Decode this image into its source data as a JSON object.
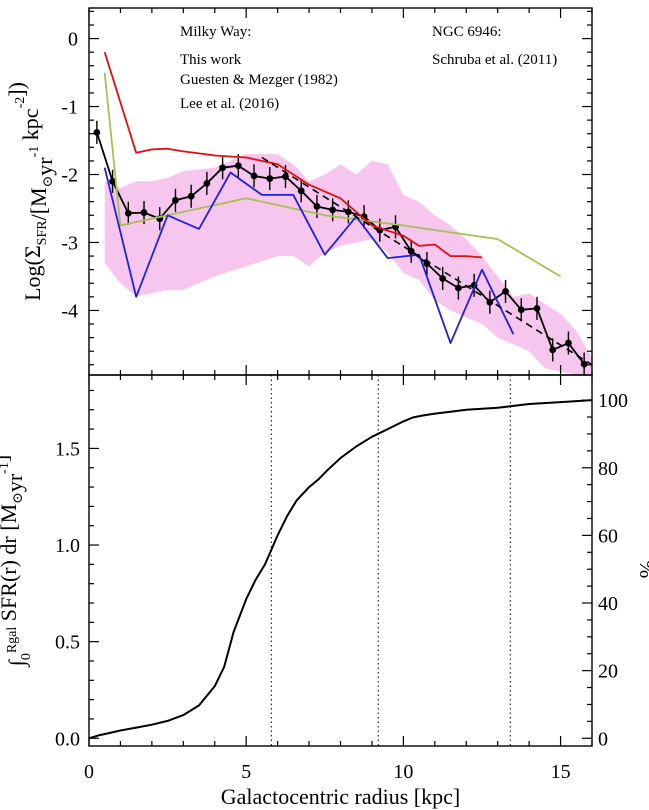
{
  "chart_data": [
    {
      "type": "line",
      "ylabel": "Log(Σ_SFR/[M⊙yr⁻¹ kpc⁻²])",
      "xlim": [
        0,
        16
      ],
      "ylim": [
        -4.95,
        0.45
      ],
      "xticks": [
        0,
        5,
        10,
        15
      ],
      "yticks": [
        0,
        -1,
        -2,
        -3,
        -4
      ],
      "ytick_labels": [
        "0",
        "-1",
        "-2",
        "-3",
        "-4"
      ],
      "legend": {
        "milky_way_header": "Milky Way:",
        "ngc_header": "NGC 6946:",
        "entries": [
          {
            "name": "This work",
            "color": "#000000"
          },
          {
            "name": "Guesten & Mezger (1982)",
            "color": "#a8c050"
          },
          {
            "name": "Lee et al. (2016)",
            "color": "#2020e0"
          },
          {
            "name": "Schruba et al. (2011)",
            "color": "#e01010"
          }
        ]
      },
      "band": {
        "color": "#f7c6ef",
        "x": [
          0.5,
          1.0,
          1.5,
          2.0,
          2.5,
          3.0,
          4.0,
          5.0,
          6.0,
          6.5,
          7.0,
          7.5,
          8.0,
          8.5,
          9.0,
          9.5,
          10.0,
          10.5,
          11.0,
          11.5,
          12.0,
          12.5,
          13.0,
          13.5,
          14.0,
          14.5,
          15.0,
          15.5,
          16.0
        ],
        "upper": [
          -2.1,
          -2.2,
          -2.1,
          -2.1,
          -2.05,
          -1.95,
          -1.9,
          -1.7,
          -1.7,
          -1.85,
          -2.1,
          -2.0,
          -1.85,
          -2.0,
          -1.8,
          -1.85,
          -2.3,
          -2.4,
          -2.6,
          -2.75,
          -2.95,
          -3.2,
          -3.5,
          -3.8,
          -3.75,
          -3.9,
          -4.05,
          -4.3,
          -4.7
        ],
        "lower": [
          -3.3,
          -3.6,
          -3.8,
          -3.75,
          -3.7,
          -3.7,
          -3.5,
          -3.35,
          -3.2,
          -3.2,
          -3.35,
          -3.15,
          -3.05,
          -3.0,
          -2.95,
          -3.15,
          -3.45,
          -3.55,
          -3.85,
          -4.0,
          -4.1,
          -4.2,
          -4.4,
          -4.5,
          -4.6,
          -4.85,
          -4.9,
          -4.95,
          -4.95
        ]
      },
      "series": [
        {
          "name": "This work",
          "color": "#000000",
          "x": [
            0.25,
            0.75,
            1.25,
            1.75,
            2.25,
            2.75,
            3.25,
            3.75,
            4.25,
            4.75,
            5.25,
            5.75,
            6.25,
            6.75,
            7.25,
            7.75,
            8.25,
            8.75,
            9.25,
            9.75,
            10.25,
            10.75,
            11.25,
            11.75,
            12.25,
            12.75,
            13.25,
            13.75,
            14.25,
            14.75,
            15.25,
            15.75
          ],
          "y": [
            -1.38,
            -2.1,
            -2.57,
            -2.56,
            -2.65,
            -2.38,
            -2.32,
            -2.13,
            -1.9,
            -1.87,
            -2.02,
            -2.06,
            -2.03,
            -2.24,
            -2.47,
            -2.52,
            -2.55,
            -2.62,
            -2.82,
            -2.77,
            -3.13,
            -3.31,
            -3.53,
            -3.67,
            -3.63,
            -3.88,
            -3.72,
            -3.99,
            -3.97,
            -4.58,
            -4.48,
            -4.79
          ],
          "err": 0.17
        },
        {
          "name": "Guesten & Mezger (1982)",
          "color": "#a8c050",
          "x": [
            0.5,
            1.0,
            5.0,
            7.5,
            10.0,
            13.0,
            15.0
          ],
          "y": [
            -0.5,
            -2.75,
            -2.35,
            -2.6,
            -2.75,
            -2.95,
            -3.5
          ]
        },
        {
          "name": "Lee et al. (2016)",
          "color": "#2020e0",
          "x": [
            0.5,
            1.5,
            2.5,
            3.5,
            4.5,
            5.5,
            6.5,
            7.5,
            8.5,
            9.5,
            10.5,
            11.5,
            12.5,
            13.5
          ],
          "y": [
            -1.9,
            -3.8,
            -2.6,
            -2.8,
            -1.97,
            -2.3,
            -2.3,
            -3.18,
            -2.62,
            -3.23,
            -3.18,
            -4.48,
            -3.4,
            -4.35
          ]
        },
        {
          "name": "Schruba et al. (2011)",
          "color": "#e01010",
          "x": [
            0.5,
            1.5,
            2.0,
            2.5,
            3.0,
            3.5,
            4.0,
            5.0,
            6.0,
            7.0,
            8.0,
            9.0,
            10.0,
            10.5,
            11.0,
            11.5,
            12.0,
            12.5
          ],
          "y": [
            -0.2,
            -1.68,
            -1.63,
            -1.62,
            -1.66,
            -1.69,
            -1.72,
            -1.75,
            -1.85,
            -2.15,
            -2.35,
            -2.75,
            -2.9,
            -3.05,
            -3.03,
            -3.2,
            -3.2,
            -3.22
          ]
        },
        {
          "name": "",
          "color": "#000000",
          "dash": true,
          "x": [
            5.5,
            16.0
          ],
          "y": [
            -1.75,
            -4.8
          ]
        }
      ]
    },
    {
      "type": "line",
      "xlabel": "Galactocentric radius [kpc]",
      "ylabel": "∫₀^Rgal SFR(r) dr [M⊙yr⁻¹]",
      "ylabel_right": "%",
      "xlim": [
        0,
        16
      ],
      "ylim": [
        -0.04,
        1.88
      ],
      "xticks": [
        0,
        5,
        10,
        15
      ],
      "yticks": [
        0.0,
        0.5,
        1.0,
        1.5
      ],
      "ytick_labels": [
        "0.0",
        "0.5",
        "1.0",
        "1.5"
      ],
      "right_ticks": [
        0,
        20,
        40,
        60,
        80,
        100
      ],
      "right_max_value": 1.75,
      "vlines": [
        5.8,
        9.2,
        13.4
      ],
      "series": [
        {
          "name": "",
          "color": "#000000",
          "x": [
            0.0,
            0.3,
            0.6,
            1.0,
            1.5,
            2.0,
            2.5,
            3.0,
            3.5,
            4.0,
            4.3,
            4.6,
            5.0,
            5.3,
            5.6,
            6.0,
            6.3,
            6.6,
            7.0,
            7.3,
            7.6,
            8.0,
            8.5,
            9.0,
            9.5,
            10.0,
            10.3,
            10.6,
            11.0,
            11.5,
            12.0,
            12.5,
            13.0,
            13.5,
            14.0,
            15.0,
            16.0
          ],
          "y": [
            0.0,
            0.015,
            0.025,
            0.04,
            0.055,
            0.07,
            0.09,
            0.12,
            0.17,
            0.27,
            0.37,
            0.55,
            0.72,
            0.82,
            0.9,
            1.05,
            1.15,
            1.23,
            1.3,
            1.34,
            1.39,
            1.45,
            1.51,
            1.56,
            1.6,
            1.64,
            1.66,
            1.67,
            1.68,
            1.69,
            1.7,
            1.705,
            1.71,
            1.72,
            1.73,
            1.74,
            1.75
          ]
        }
      ]
    }
  ]
}
